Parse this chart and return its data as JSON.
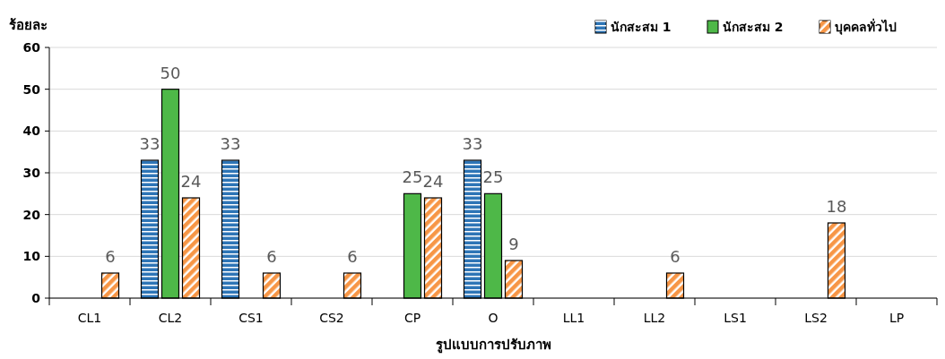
{
  "chart_data": {
    "type": "bar",
    "ylabel": "ร้อยละ",
    "xlabel": "รูปแบบการปรับภาพ",
    "categories": [
      "CL1",
      "CL2",
      "CS1",
      "CS2",
      "CP",
      "O",
      "LL1",
      "LL2",
      "LS1",
      "LS2",
      "LP"
    ],
    "series": [
      {
        "name": "นักสะสม 1",
        "color": "#2e75b6",
        "values": [
          null,
          33,
          33,
          null,
          null,
          33,
          null,
          null,
          null,
          null,
          null
        ]
      },
      {
        "name": "นักสะสม 2",
        "color": "#4eb848",
        "values": [
          null,
          50,
          null,
          null,
          25,
          25,
          null,
          null,
          null,
          null,
          null
        ]
      },
      {
        "name": "บุคคลทั่วไป",
        "color": "#f79646",
        "values": [
          6,
          24,
          6,
          6,
          24,
          9,
          null,
          6,
          null,
          18,
          null
        ]
      }
    ],
    "ylim": [
      0,
      60
    ],
    "yticks": [
      0,
      10,
      20,
      30,
      40,
      50,
      60
    ],
    "grid": "y",
    "legend": "top right",
    "data_labels": true
  }
}
